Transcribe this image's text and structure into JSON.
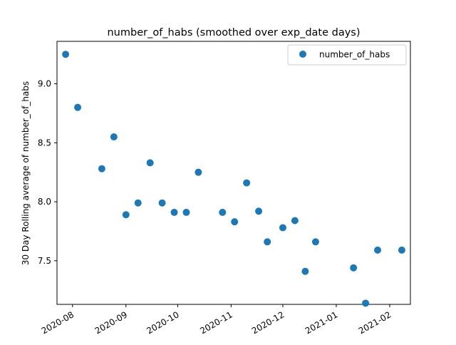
{
  "chart_data": {
    "type": "scatter",
    "title": "number_of_habs (smoothed over exp_date days)",
    "xlabel": "",
    "ylabel": "30 Day Rolling average of number_of_habs",
    "x_tick_labels": [
      "2020-08",
      "2020-09",
      "2020-10",
      "2020-11",
      "2020-12",
      "2021-01",
      "2021-02"
    ],
    "y_ticks": [
      7.5,
      8.0,
      8.5,
      9.0
    ],
    "y_tick_labels": [
      "7.5",
      "8.0",
      "8.5",
      "9.0"
    ],
    "xlim": [
      "2020-07-23",
      "2021-02-13"
    ],
    "ylim": [
      7.13,
      9.36
    ],
    "grid": false,
    "legend_position": "top-right",
    "marker_color": "#1f77b4",
    "series": [
      {
        "name": "number_of_habs",
        "x": [
          "2020-07-28",
          "2020-08-04",
          "2020-08-18",
          "2020-08-25",
          "2020-09-01",
          "2020-09-08",
          "2020-09-15",
          "2020-09-22",
          "2020-09-29",
          "2020-10-06",
          "2020-10-13",
          "2020-10-27",
          "2020-11-03",
          "2020-11-10",
          "2020-11-17",
          "2020-11-22",
          "2020-12-01",
          "2020-12-08",
          "2020-12-14",
          "2020-12-20",
          "2021-01-11",
          "2021-01-18",
          "2021-01-25",
          "2021-02-08"
        ],
        "y": [
          9.25,
          8.8,
          8.28,
          8.55,
          7.89,
          7.99,
          8.33,
          7.99,
          7.91,
          7.91,
          8.25,
          7.91,
          7.83,
          8.16,
          7.92,
          7.66,
          7.78,
          7.84,
          7.41,
          7.66,
          7.44,
          7.14,
          7.59,
          7.59
        ]
      }
    ]
  }
}
